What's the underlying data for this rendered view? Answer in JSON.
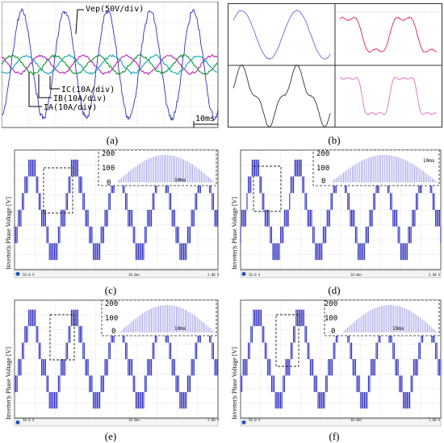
{
  "panels": {
    "a": {
      "caption": "(a)",
      "labels": [
        "Vep(50V/div)",
        "IC(10A/div)",
        "IB(10A/div)",
        "IA(10A/div)"
      ],
      "time_scale": "10ms"
    },
    "b": {
      "caption": "(b)"
    },
    "c": {
      "caption": "(c)",
      "ylabel": "Inverter|s Phase Voltage [V]",
      "inset_ticks": [
        "200",
        "100",
        "0"
      ],
      "inset_time": "10ms",
      "status": [
        "50.0 V",
        "10.0ms",
        "2.00 V"
      ]
    },
    "d": {
      "caption": "(d)",
      "ylabel": "Inverter|s Phase Voltage [V]",
      "inset_ticks": [
        "200",
        "100",
        "0"
      ],
      "inset_time": "10ms",
      "status": [
        "50.0 V",
        "10.0ms",
        "2.00 V"
      ]
    },
    "e": {
      "caption": "(e)",
      "ylabel": "Inverter|s Phase Voltage [V]",
      "inset_ticks": [
        "200",
        "100",
        "0"
      ],
      "inset_time": "10ms",
      "status": [
        "50.0 V",
        "10.0ms",
        "2.00 V"
      ]
    },
    "f": {
      "caption": "(f)",
      "ylabel": "Inverter|s Phase Voltage [V]",
      "inset_ticks": [
        "200",
        "100",
        "0"
      ],
      "inset_time": "10ms",
      "status": [
        "50.0 V",
        "10.0ms",
        "2.00 V"
      ]
    }
  },
  "colors": {
    "voltage": "#3030c0",
    "ia": "#1aa030",
    "ib": "#c030c0",
    "ic": "#20b0b0",
    "grid": "#bbbbbb"
  }
}
